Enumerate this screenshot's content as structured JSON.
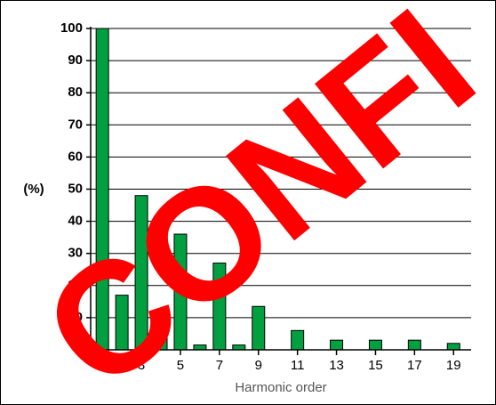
{
  "chart_data": {
    "type": "bar",
    "ylabel": "(%)",
    "xlabel": "Harmonic order",
    "annotation": "CONFI",
    "x": [
      1,
      2,
      3,
      4,
      5,
      6,
      7,
      8,
      9,
      10,
      11,
      12,
      13,
      14,
      15,
      16,
      17,
      18,
      19
    ],
    "values": [
      100,
      17,
      48,
      6,
      36,
      1.5,
      27,
      1.5,
      13.5,
      0,
      6,
      0,
      3,
      0,
      3,
      0,
      3,
      0,
      2
    ],
    "color": "#00a040",
    "xlim": [
      0.4,
      19.9
    ],
    "xticks": [
      1,
      3,
      5,
      7,
      9,
      11,
      13,
      15,
      17,
      19
    ],
    "ylim": [
      0,
      100
    ],
    "yticks": [
      0,
      10,
      20,
      30,
      40,
      50,
      60,
      70,
      80,
      90,
      100
    ],
    "grid": true
  }
}
